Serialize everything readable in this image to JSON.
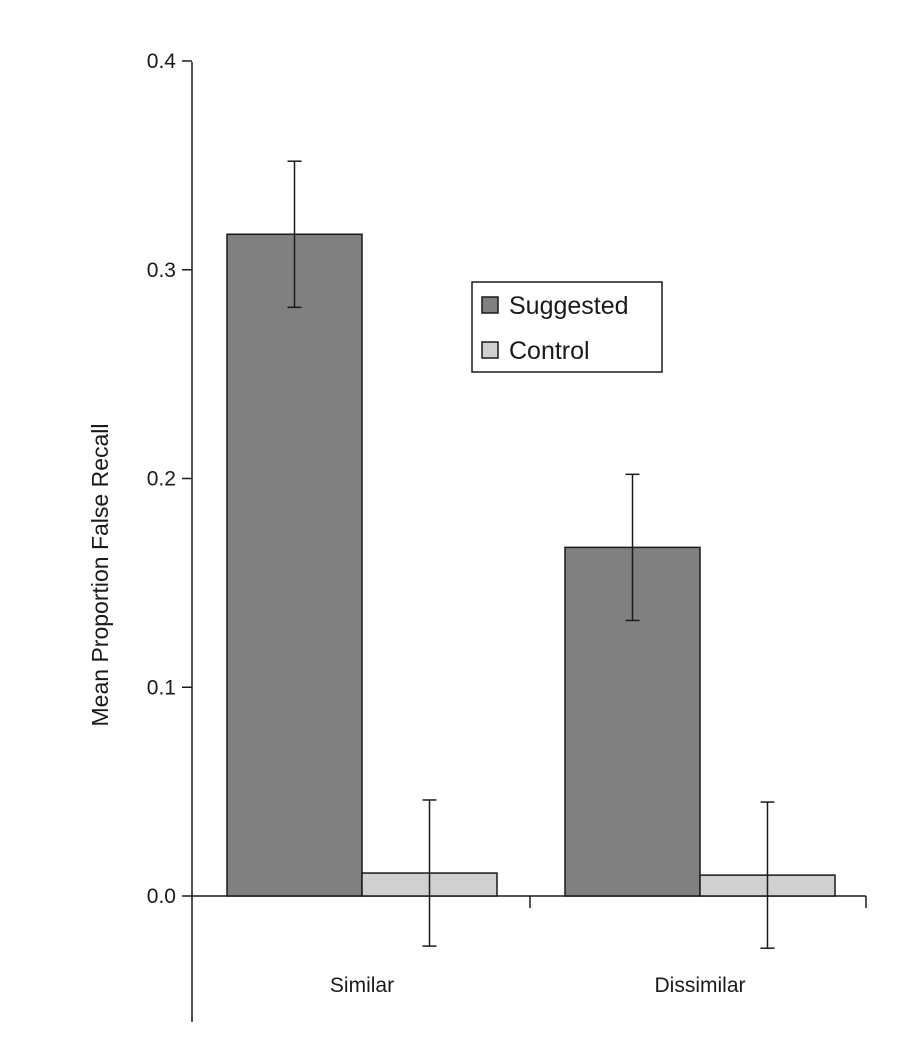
{
  "chart_data": {
    "type": "bar",
    "title": "",
    "xlabel": "",
    "ylabel": "Mean Proportion False Recall",
    "categories": [
      "Similar",
      "Dissimilar"
    ],
    "series": [
      {
        "name": "Suggested",
        "color": "#808080",
        "values": [
          0.317,
          0.167
        ],
        "error": [
          0.035,
          0.035
        ]
      },
      {
        "name": "Control",
        "color": "#d0d0d0",
        "values": [
          0.011,
          0.01
        ],
        "error": [
          0.035,
          0.035
        ]
      }
    ],
    "yticks": [
      "0.0",
      "0.1",
      "0.2",
      "0.3",
      "0.4"
    ],
    "ylim": [
      -0.06,
      0.4
    ],
    "legend_position": "center-right",
    "grid": false
  }
}
